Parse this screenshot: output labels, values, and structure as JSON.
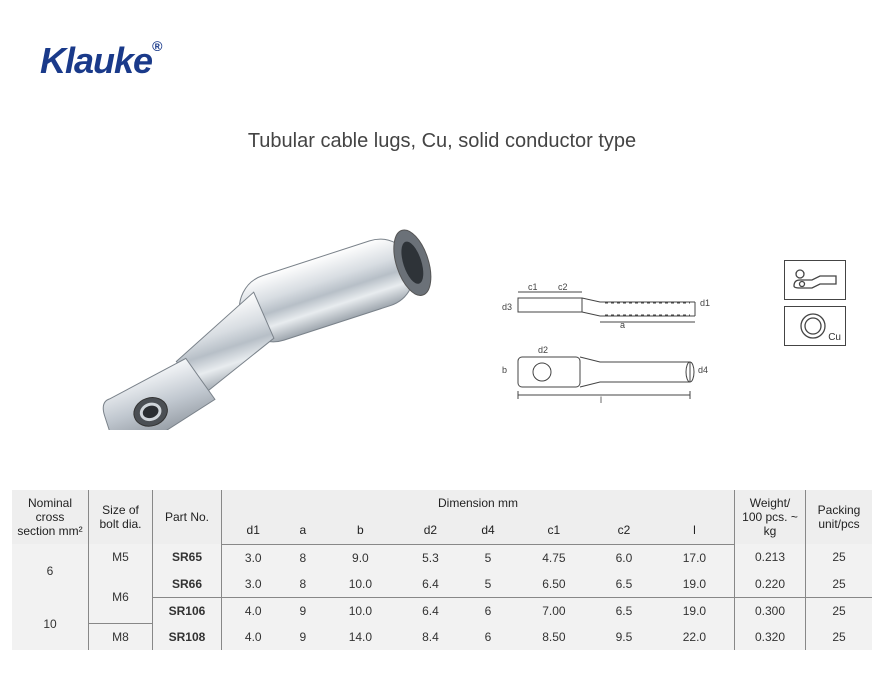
{
  "brand": {
    "name": "Klauke",
    "color": "#1a3a8a",
    "registered": "®"
  },
  "title": "Tubular cable lugs, Cu, solid conductor type",
  "schematic_labels": {
    "c1": "c1",
    "c2": "c2",
    "a": "a",
    "d1": "d1",
    "d3": "d3",
    "d2": "d2",
    "d4": "d4",
    "b": "b",
    "l": "l"
  },
  "icons": {
    "cu_label": "Cu"
  },
  "table": {
    "headers": {
      "nominal": "Nominal cross section mm²",
      "bolt": "Size of bolt dia.",
      "partno": "Part No.",
      "dimension_group": "Dimension mm",
      "d1": "d1",
      "a": "a",
      "b": "b",
      "d2": "d2",
      "d4": "d4",
      "c1": "c1",
      "c2": "c2",
      "l": "l",
      "weight": "Weight/ 100 pcs. ~ kg",
      "packing": "Packing unit/pcs"
    },
    "groups": [
      {
        "nominal": "6",
        "subgroups": [
          {
            "bolt": "M5",
            "rows": [
              {
                "part": "SR65",
                "d1": "3.0",
                "a": "8",
                "b": "9.0",
                "d2": "5.3",
                "d4": "5",
                "c1": "4.75",
                "c2": "6.0",
                "l": "17.0",
                "wt": "0.213",
                "pk": "25"
              }
            ]
          },
          {
            "bolt": "M6",
            "rows": [
              {
                "part": "SR66",
                "d1": "3.0",
                "a": "8",
                "b": "10.0",
                "d2": "6.4",
                "d4": "5",
                "c1": "6.50",
                "c2": "6.5",
                "l": "19.0",
                "wt": "0.220",
                "pk": "25"
              }
            ]
          }
        ]
      },
      {
        "nominal": "10",
        "subgroups": [
          {
            "bolt": "M6",
            "rows": [
              {
                "part": "SR106",
                "d1": "4.0",
                "a": "9",
                "b": "10.0",
                "d2": "6.4",
                "d4": "6",
                "c1": "7.00",
                "c2": "6.5",
                "l": "19.0",
                "wt": "0.300",
                "pk": "25"
              }
            ]
          },
          {
            "bolt": "M8",
            "rows": [
              {
                "part": "SR108",
                "d1": "4.0",
                "a": "9",
                "b": "14.0",
                "d2": "8.4",
                "d4": "6",
                "c1": "8.50",
                "c2": "9.5",
                "l": "22.0",
                "wt": "0.320",
                "pk": "25"
              }
            ]
          }
        ]
      }
    ]
  },
  "colors": {
    "tableBg": "#f2f2f2",
    "border": "#888888",
    "text": "#333333",
    "schematic": "#444444"
  }
}
